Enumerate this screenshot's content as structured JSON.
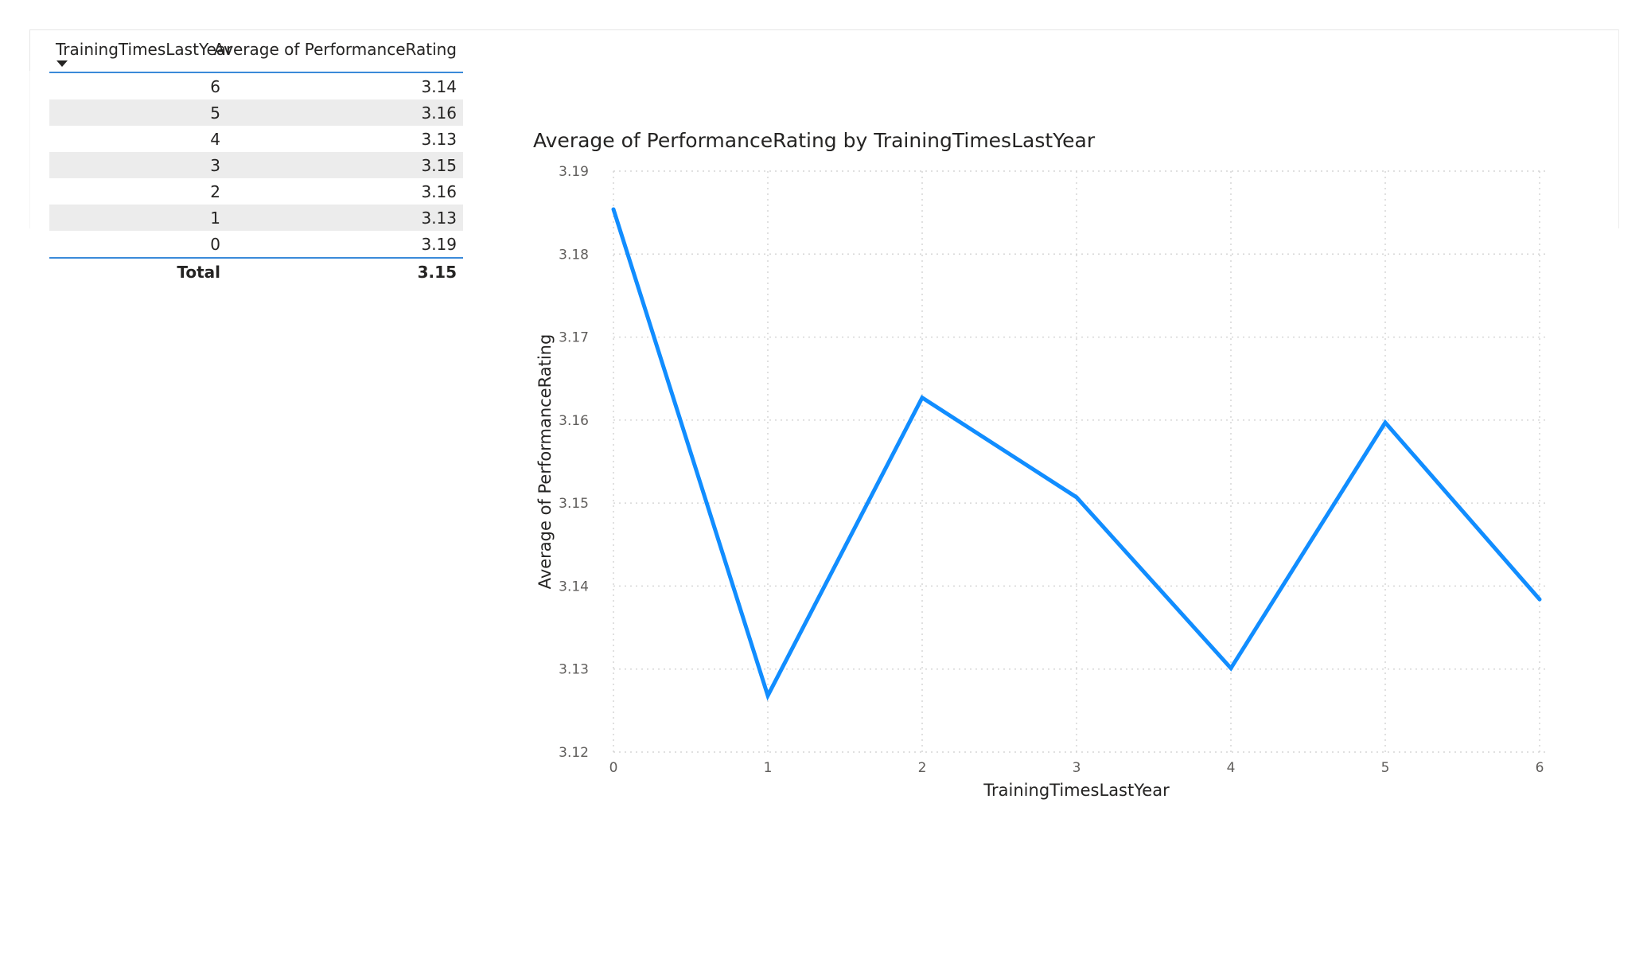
{
  "table": {
    "columns": [
      "TrainingTimesLastYear",
      "Average of PerformanceRating"
    ],
    "rows": [
      [
        "6",
        "3.14"
      ],
      [
        "5",
        "3.16"
      ],
      [
        "4",
        "3.13"
      ],
      [
        "3",
        "3.15"
      ],
      [
        "2",
        "3.16"
      ],
      [
        "1",
        "3.13"
      ],
      [
        "0",
        "3.19"
      ]
    ],
    "total_label": "Total",
    "total_value": "3.15"
  },
  "chart_data": {
    "type": "line",
    "title": "Average of PerformanceRating by TrainingTimesLastYear",
    "xlabel": "TrainingTimesLastYear",
    "ylabel": "Average of PerformanceRating",
    "x": [
      0,
      1,
      2,
      3,
      4,
      5,
      6
    ],
    "series": [
      {
        "values": [
          3.1854,
          3.1268,
          3.1627,
          3.1507,
          3.1301,
          3.1597,
          3.1384
        ]
      }
    ],
    "xlim": [
      0,
      6
    ],
    "ylim": [
      3.12,
      3.19
    ],
    "yticks": [
      "3.12",
      "3.13",
      "3.14",
      "3.15",
      "3.16",
      "3.17",
      "3.18",
      "3.19"
    ],
    "xticks": [
      "0",
      "1",
      "2",
      "3",
      "4",
      "5",
      "6"
    ],
    "grid": true,
    "line_color": "#118DFF"
  }
}
